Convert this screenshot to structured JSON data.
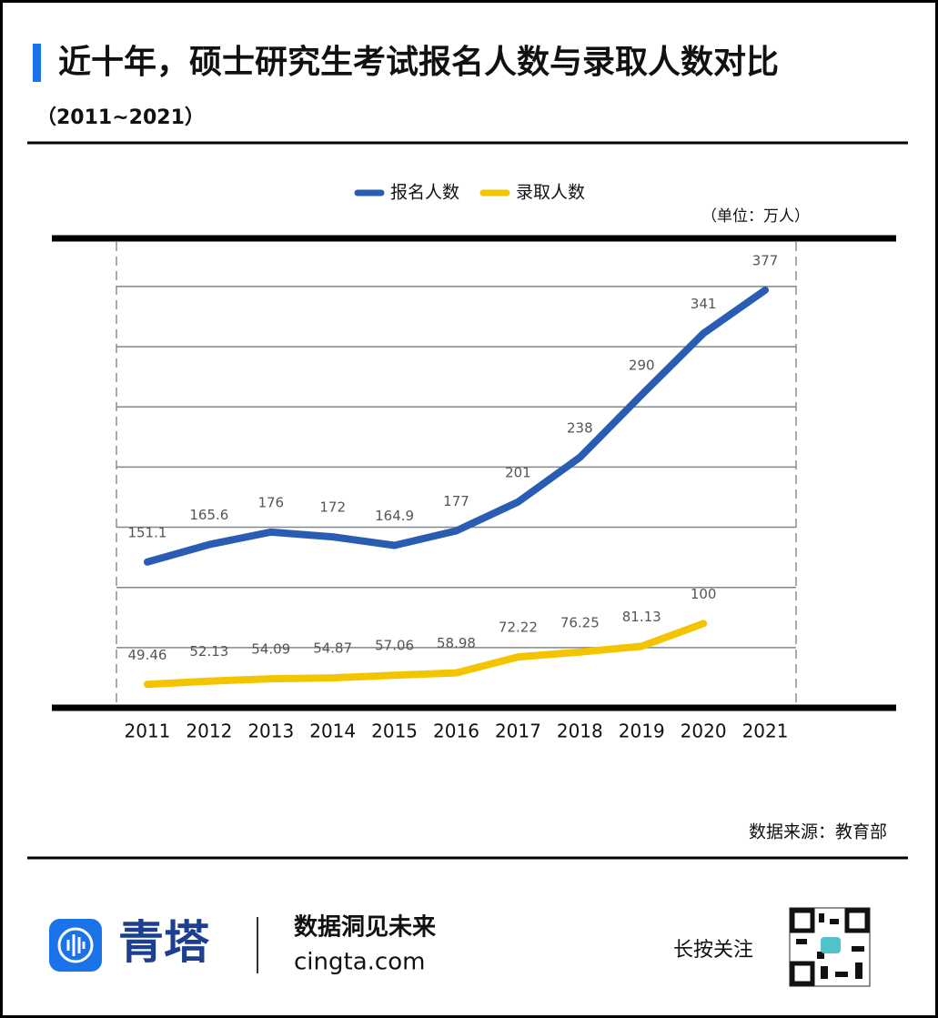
{
  "chart_data": {
    "type": "line",
    "title": "近十年，硕士研究生考试报名人数与录取人数对比",
    "subtitle": "（2011~2021）",
    "unit": "（单位：万人）",
    "source": "数据来源：教育部",
    "categories": [
      "2011",
      "2012",
      "2013",
      "2014",
      "2015",
      "2016",
      "2017",
      "2018",
      "2019",
      "2020",
      "2021"
    ],
    "series": [
      {
        "name": "报名人数",
        "color": "#2a5cb4",
        "values": [
          151.1,
          165.6,
          176,
          172,
          164.9,
          177,
          201,
          238,
          290,
          341,
          377
        ]
      },
      {
        "name": "录取人数",
        "color": "#f5c400",
        "values": [
          49.46,
          52.13,
          54.09,
          54.87,
          57.06,
          58.98,
          72.22,
          76.25,
          81.13,
          100,
          null
        ]
      }
    ],
    "ylim": [
      30,
      420
    ],
    "yticks": [
      80,
      130,
      180,
      230,
      280,
      330,
      380
    ],
    "grid": true,
    "legend": "top"
  },
  "footer": {
    "brand": "青塔",
    "slogan": "数据洞见未来",
    "site": "cingta.com",
    "follow": "长按关注"
  }
}
